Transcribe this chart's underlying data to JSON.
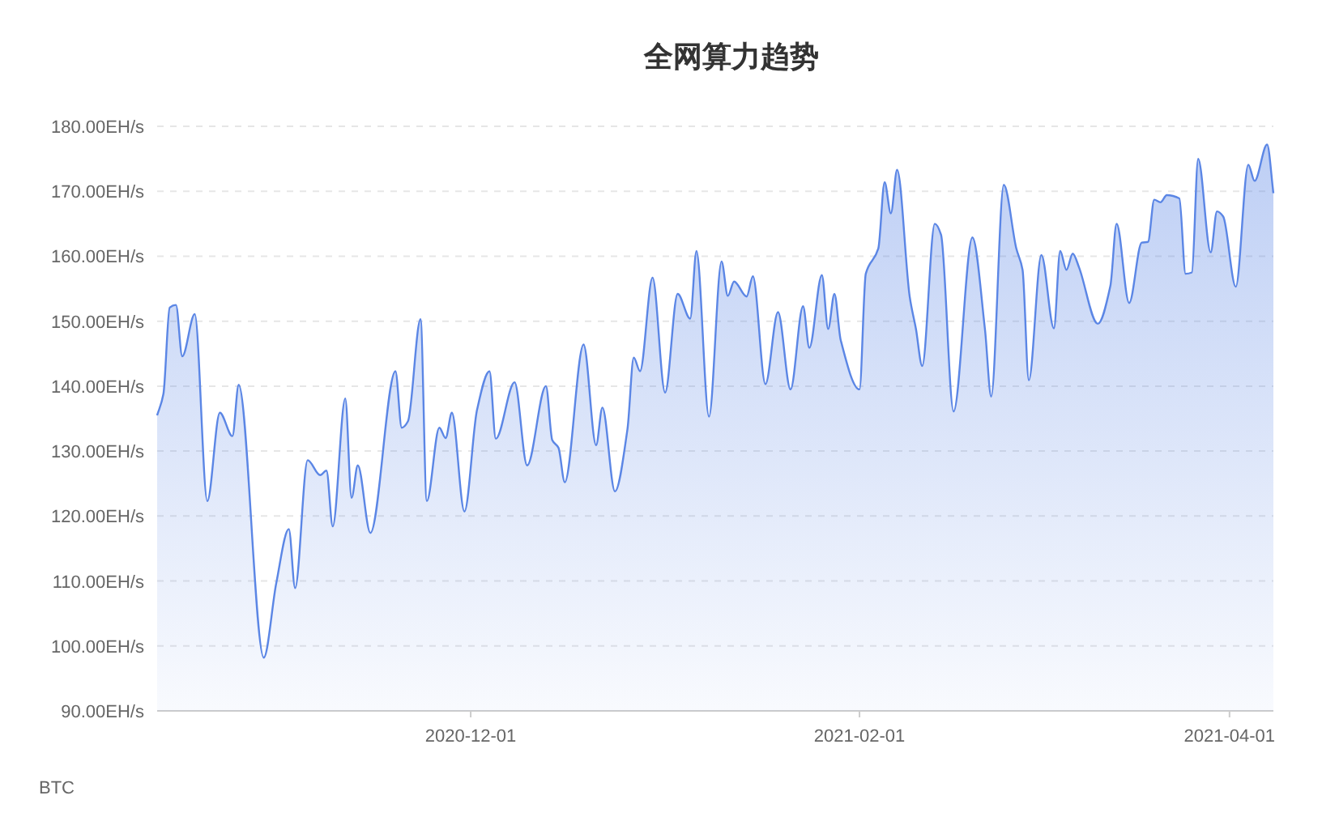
{
  "chart_data": {
    "type": "area",
    "title": "全网算力趋势",
    "annotations": [
      "BTC"
    ],
    "x": [
      "2020-10-12",
      "2020-10-13",
      "2020-10-14",
      "2020-10-15",
      "2020-10-16",
      "2020-10-18",
      "2020-10-20",
      "2020-10-22",
      "2020-10-24",
      "2020-10-25",
      "2020-10-29",
      "2020-10-31",
      "2020-11-02",
      "2020-11-03",
      "2020-11-05",
      "2020-11-07",
      "2020-11-08",
      "2020-11-09",
      "2020-11-11",
      "2020-11-12",
      "2020-11-13",
      "2020-11-15",
      "2020-11-19",
      "2020-11-20",
      "2020-11-21",
      "2020-11-23",
      "2020-11-24",
      "2020-11-26",
      "2020-11-27",
      "2020-11-28",
      "2020-11-30",
      "2020-12-02",
      "2020-12-04",
      "2020-12-05",
      "2020-12-08",
      "2020-12-10",
      "2020-12-13",
      "2020-12-14",
      "2020-12-15",
      "2020-12-16",
      "2020-12-19",
      "2020-12-21",
      "2020-12-22",
      "2020-12-24",
      "2020-12-26",
      "2020-12-27",
      "2020-12-28",
      "2020-12-30",
      "2021-01-01",
      "2021-01-03",
      "2021-01-05",
      "2021-01-06",
      "2021-01-08",
      "2021-01-10",
      "2021-01-11",
      "2021-01-12",
      "2021-01-14",
      "2021-01-15",
      "2021-01-17",
      "2021-01-19",
      "2021-01-21",
      "2021-01-23",
      "2021-01-24",
      "2021-01-26",
      "2021-01-27",
      "2021-01-28",
      "2021-01-29",
      "2021-02-01",
      "2021-02-02",
      "2021-02-04",
      "2021-02-05",
      "2021-02-06",
      "2021-02-07",
      "2021-02-09",
      "2021-02-10",
      "2021-02-11",
      "2021-02-13",
      "2021-02-14",
      "2021-02-16",
      "2021-02-19",
      "2021-02-21",
      "2021-02-22",
      "2021-02-24",
      "2021-02-26",
      "2021-02-27",
      "2021-02-28",
      "2021-03-02",
      "2021-03-04",
      "2021-03-05",
      "2021-03-06",
      "2021-03-07",
      "2021-03-08",
      "2021-03-11",
      "2021-03-13",
      "2021-03-14",
      "2021-03-16",
      "2021-03-18",
      "2021-03-19",
      "2021-03-20",
      "2021-03-21",
      "2021-03-22",
      "2021-03-24",
      "2021-03-25",
      "2021-03-26",
      "2021-03-27",
      "2021-03-29",
      "2021-03-30",
      "2021-03-31",
      "2021-04-02",
      "2021-04-04",
      "2021-04-05",
      "2021-04-07",
      "2021-04-08"
    ],
    "series": [
      {
        "color": "#5b86e5",
        "values": [
          135.5,
          138.8,
          152.1,
          152.5,
          144.6,
          151.1,
          122.3,
          135.9,
          132.3,
          140.2,
          98.2,
          109.7,
          118.0,
          108.9,
          128.6,
          126.3,
          127.0,
          118.4,
          138.1,
          122.8,
          127.8,
          117.4,
          142.3,
          133.6,
          134.6,
          150.3,
          122.3,
          133.6,
          132.0,
          135.9,
          120.7,
          136.3,
          142.3,
          131.9,
          140.6,
          127.8,
          140.0,
          131.7,
          130.5,
          125.2,
          146.4,
          130.9,
          136.7,
          123.8,
          133.4,
          144.4,
          142.3,
          156.7,
          139.0,
          154.2,
          150.4,
          160.8,
          135.3,
          159.2,
          153.9,
          156.1,
          153.8,
          156.9,
          140.3,
          151.4,
          139.5,
          152.3,
          145.9,
          157.1,
          148.8,
          154.2,
          147.1,
          139.5,
          157.3,
          161.2,
          171.4,
          166.6,
          173.3,
          153.8,
          148.8,
          143.1,
          165.0,
          163.3,
          136.1,
          162.9,
          148.8,
          138.4,
          171.0,
          161.2,
          157.9,
          140.9,
          160.2,
          148.9,
          160.8,
          157.9,
          160.4,
          158.3,
          149.6,
          155.4,
          165.0,
          152.8,
          162.1,
          162.2,
          168.7,
          168.3,
          169.4,
          168.9,
          157.3,
          157.5,
          175.0,
          160.6,
          166.9,
          166.1,
          155.3,
          174.1,
          171.6,
          177.2,
          169.7
        ]
      }
    ],
    "xlim": [
      "2020-10-12",
      "2021-04-08"
    ],
    "xticks": [
      "2020-12-01",
      "2021-02-01",
      "2021-04-01"
    ],
    "ylim": [
      90,
      180
    ],
    "yticks": [
      {
        "value": 90,
        "label": "90.00EH/s"
      },
      {
        "value": 100,
        "label": "100.00EH/s"
      },
      {
        "value": 110,
        "label": "110.00EH/s"
      },
      {
        "value": 120,
        "label": "120.00EH/s"
      },
      {
        "value": 130,
        "label": "130.00EH/s"
      },
      {
        "value": 140,
        "label": "140.00EH/s"
      },
      {
        "value": 150,
        "label": "150.00EH/s"
      },
      {
        "value": 160,
        "label": "160.00EH/s"
      },
      {
        "value": 170,
        "label": "170.00EH/s"
      },
      {
        "value": 180,
        "label": "180.00EH/s"
      }
    ],
    "grid": "y"
  }
}
